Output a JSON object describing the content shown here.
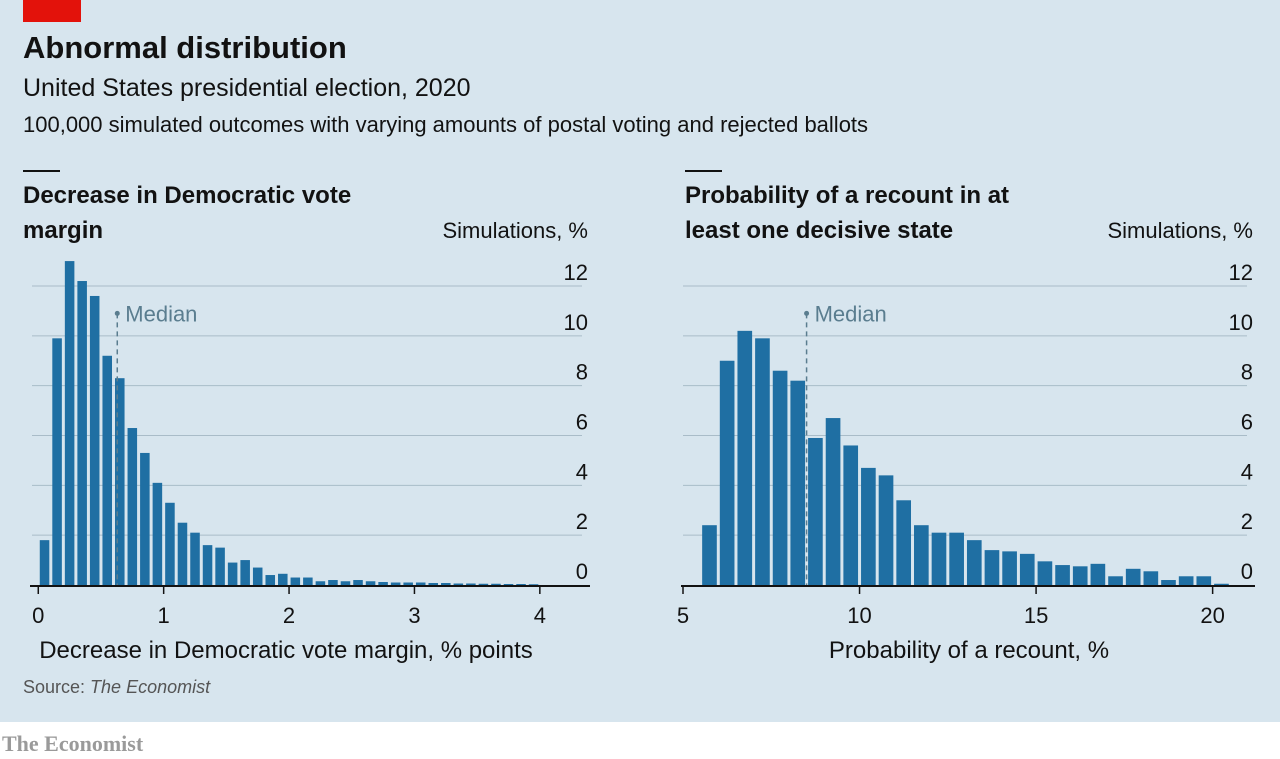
{
  "header": {
    "title": "Abnormal distribution",
    "subtitle": "United States presidential election, 2020",
    "description": "100,000 simulated outcomes with varying amounts of postal voting and rejected ballots"
  },
  "source_label": "Source: ",
  "source_name": "The Economist",
  "brand": "The Economist",
  "colors": {
    "bar": "#1f6fa3",
    "panel": "#d7e5ee",
    "accent": "#e3120b",
    "median": "#5a7d8f"
  },
  "chart_data": [
    {
      "type": "bar",
      "title": "Decrease in Democratic vote margin",
      "xlabel": "Decrease in Democratic vote margin, % points",
      "ylabel": "Simulations, %",
      "xlim": [
        -0.05,
        4.4
      ],
      "ylim": [
        0,
        12
      ],
      "xticks": [
        0,
        1,
        2,
        3,
        4
      ],
      "yticks": [
        0,
        2,
        4,
        6,
        8,
        10,
        12
      ],
      "bin_width": 0.1,
      "x": [
        0.05,
        0.15,
        0.25,
        0.35,
        0.45,
        0.55,
        0.65,
        0.75,
        0.85,
        0.95,
        1.05,
        1.15,
        1.25,
        1.35,
        1.45,
        1.55,
        1.65,
        1.75,
        1.85,
        1.95,
        2.05,
        2.15,
        2.25,
        2.35,
        2.45,
        2.55,
        2.65,
        2.75,
        2.85,
        2.95,
        3.05,
        3.15,
        3.25,
        3.35,
        3.45,
        3.55,
        3.65,
        3.75,
        3.85,
        3.95
      ],
      "values": [
        1.8,
        9.9,
        13.0,
        12.2,
        11.6,
        9.2,
        8.3,
        6.3,
        5.3,
        4.1,
        3.3,
        2.5,
        2.1,
        1.6,
        1.5,
        0.9,
        1.0,
        0.7,
        0.4,
        0.45,
        0.3,
        0.3,
        0.15,
        0.2,
        0.15,
        0.2,
        0.15,
        0.12,
        0.1,
        0.1,
        0.1,
        0.08,
        0.08,
        0.06,
        0.06,
        0.05,
        0.05,
        0.04,
        0.04,
        0.03
      ],
      "median": 0.63,
      "median_label": "Median",
      "grid": true
    },
    {
      "type": "bar",
      "title": "Probability of a recount in at least one decisive state",
      "xlabel": "Probability of a recount, %",
      "ylabel": "Simulations, %",
      "xlim": [
        5,
        21.2
      ],
      "ylim": [
        0,
        12
      ],
      "xticks": [
        5,
        10,
        15,
        20
      ],
      "yticks": [
        0,
        2,
        4,
        6,
        8,
        10,
        12
      ],
      "bin_width": 0.5,
      "x": [
        5.75,
        6.25,
        6.75,
        7.25,
        7.75,
        8.25,
        8.75,
        9.25,
        9.75,
        10.25,
        10.75,
        11.25,
        11.75,
        12.25,
        12.75,
        13.25,
        13.75,
        14.25,
        14.75,
        15.25,
        15.75,
        16.25,
        16.75,
        17.25,
        17.75,
        18.25,
        18.75,
        19.25,
        19.75,
        20.25
      ],
      "values": [
        2.4,
        9.0,
        10.2,
        9.9,
        8.6,
        8.2,
        5.9,
        6.7,
        5.6,
        4.7,
        4.4,
        3.4,
        2.4,
        2.1,
        2.1,
        1.8,
        1.4,
        1.35,
        1.25,
        0.95,
        0.8,
        0.75,
        0.85,
        0.35,
        0.65,
        0.55,
        0.2,
        0.35,
        0.35,
        0.05
      ],
      "median": 8.5,
      "median_label": "Median",
      "grid": true
    }
  ]
}
